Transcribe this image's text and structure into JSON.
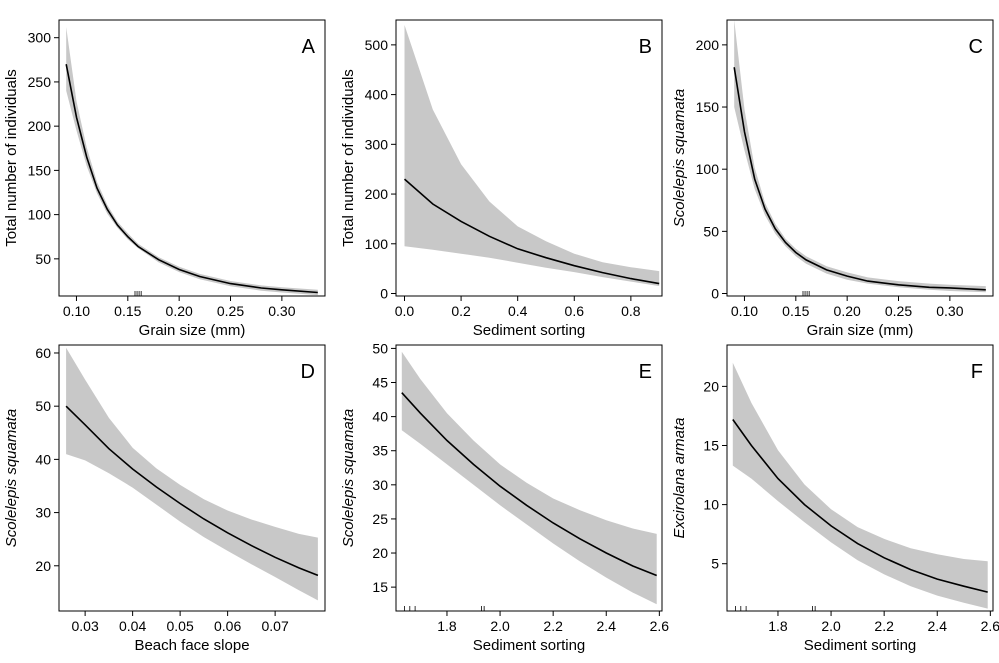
{
  "chart_data": [
    {
      "type": "line",
      "panel": "A",
      "xlabel": "Grain size (mm)",
      "ylabel": "Total number of individuals",
      "ylabel_italic": false,
      "xlim": [
        0.083,
        0.342
      ],
      "ylim": [
        8,
        320
      ],
      "xticks": [
        0.1,
        0.15,
        0.2,
        0.25,
        0.3
      ],
      "xtick_labels": [
        "0.10",
        "0.15",
        "0.20",
        "0.25",
        "0.30"
      ],
      "yticks": [
        50,
        100,
        150,
        200,
        250,
        300
      ],
      "ytick_labels": [
        "50",
        "100",
        "150",
        "200",
        "250",
        "300"
      ],
      "rug": [
        0.157,
        0.159,
        0.161,
        0.163
      ],
      "series": [
        {
          "x": [
            0.09,
            0.1,
            0.11,
            0.12,
            0.13,
            0.14,
            0.15,
            0.16,
            0.18,
            0.2,
            0.22,
            0.25,
            0.28,
            0.3,
            0.335
          ],
          "y": [
            270,
            210,
            165,
            130,
            106,
            88,
            75,
            64,
            49,
            38,
            30,
            22,
            17,
            15,
            12
          ],
          "lower": [
            240,
            195,
            155,
            124,
            101,
            85,
            72,
            62,
            46,
            35,
            27,
            19,
            14,
            12,
            9
          ],
          "upper": [
            312,
            228,
            176,
            137,
            111,
            92,
            79,
            67,
            52,
            41,
            33,
            25,
            20,
            18,
            15
          ]
        }
      ]
    },
    {
      "type": "line",
      "panel": "B",
      "xlabel": "Sediment sorting",
      "ylabel": "Total number of individuals",
      "ylabel_italic": false,
      "xlim": [
        -0.03,
        0.91
      ],
      "ylim": [
        -5,
        550
      ],
      "xticks": [
        0.0,
        0.2,
        0.4,
        0.6,
        0.8
      ],
      "xtick_labels": [
        "0.0",
        "0.2",
        "0.4",
        "0.6",
        "0.8"
      ],
      "yticks": [
        0,
        100,
        200,
        300,
        400,
        500
      ],
      "ytick_labels": [
        "0",
        "100",
        "200",
        "300",
        "400",
        "500"
      ],
      "rug": [],
      "series": [
        {
          "x": [
            0.0,
            0.1,
            0.2,
            0.3,
            0.4,
            0.5,
            0.6,
            0.7,
            0.8,
            0.9
          ],
          "y": [
            230,
            180,
            145,
            115,
            90,
            72,
            56,
            42,
            30,
            20
          ],
          "lower": [
            95,
            88,
            80,
            72,
            62,
            52,
            43,
            33,
            24,
            15
          ],
          "upper": [
            540,
            370,
            260,
            185,
            135,
            105,
            80,
            63,
            53,
            45
          ]
        }
      ]
    },
    {
      "type": "line",
      "panel": "C",
      "xlabel": "Grain size (mm)",
      "ylabel": "Scolelepis squamata",
      "ylabel_italic": true,
      "xlim": [
        0.083,
        0.342
      ],
      "ylim": [
        -2,
        220
      ],
      "xticks": [
        0.1,
        0.15,
        0.2,
        0.25,
        0.3
      ],
      "xtick_labels": [
        "0.10",
        "0.15",
        "0.20",
        "0.25",
        "0.30"
      ],
      "yticks": [
        0,
        50,
        100,
        150,
        200
      ],
      "ytick_labels": [
        "0",
        "50",
        "100",
        "150",
        "200"
      ],
      "rug": [
        0.157,
        0.159,
        0.161,
        0.163
      ],
      "series": [
        {
          "x": [
            0.09,
            0.1,
            0.11,
            0.12,
            0.13,
            0.14,
            0.15,
            0.16,
            0.18,
            0.2,
            0.22,
            0.25,
            0.28,
            0.3,
            0.335
          ],
          "y": [
            182,
            130,
            92,
            68,
            52,
            41,
            33,
            27,
            19,
            14,
            10,
            7,
            5,
            4.5,
            3
          ],
          "lower": [
            150,
            115,
            84,
            63,
            48,
            38,
            30,
            24,
            16,
            11,
            8,
            5,
            3,
            2,
            1
          ],
          "upper": [
            220,
            148,
            101,
            73,
            56,
            44,
            36,
            30,
            22,
            17,
            13,
            10,
            8,
            7,
            6
          ]
        }
      ]
    },
    {
      "type": "line",
      "panel": "D",
      "xlabel": "Beach face slope",
      "ylabel": "Scolelepis squamata",
      "ylabel_italic": true,
      "xlim": [
        0.0245,
        0.0805
      ],
      "ylim": [
        11.5,
        61.5
      ],
      "xticks": [
        0.03,
        0.04,
        0.05,
        0.06,
        0.07
      ],
      "xtick_labels": [
        "0.03",
        "0.04",
        "0.05",
        "0.06",
        "0.07"
      ],
      "yticks": [
        20,
        30,
        40,
        50,
        60
      ],
      "ytick_labels": [
        "20",
        "30",
        "40",
        "50",
        "60"
      ],
      "rug": [],
      "series": [
        {
          "x": [
            0.026,
            0.03,
            0.035,
            0.04,
            0.045,
            0.05,
            0.055,
            0.06,
            0.065,
            0.07,
            0.075,
            0.079
          ],
          "y": [
            50,
            46.5,
            42,
            38.2,
            34.8,
            31.7,
            28.8,
            26.2,
            23.8,
            21.6,
            19.6,
            18.2
          ],
          "lower": [
            41,
            39.8,
            37.4,
            34.7,
            31.5,
            28.3,
            25.4,
            22.8,
            20.3,
            17.9,
            15.4,
            13.5
          ],
          "upper": [
            61,
            55,
            47.8,
            42.2,
            38.3,
            35.2,
            32.5,
            30.4,
            28.7,
            27.3,
            26,
            25.3
          ]
        }
      ]
    },
    {
      "type": "line",
      "panel": "E",
      "xlabel": "Sediment sorting",
      "ylabel": "Scolelepis squamata",
      "ylabel_italic": true,
      "xlim": [
        1.608,
        2.61
      ],
      "ylim": [
        11.5,
        50.5
      ],
      "xticks": [
        1.8,
        2.0,
        2.2,
        2.4,
        2.6
      ],
      "xtick_labels": [
        "1.8",
        "2.0",
        "2.2",
        "2.4",
        "2.6"
      ],
      "yticks": [
        15,
        20,
        25,
        30,
        35,
        40,
        45,
        50
      ],
      "ytick_labels": [
        "15",
        "20",
        "25",
        "30",
        "35",
        "40",
        "45",
        "50"
      ],
      "rug": [
        1.64,
        1.66,
        1.68,
        1.93,
        1.94
      ],
      "series": [
        {
          "x": [
            1.63,
            1.7,
            1.8,
            1.9,
            2.0,
            2.1,
            2.2,
            2.3,
            2.4,
            2.5,
            2.59
          ],
          "y": [
            43.5,
            40.5,
            36.5,
            33,
            29.8,
            27,
            24.4,
            22.1,
            20,
            18.1,
            16.7
          ],
          "lower": [
            38,
            36,
            33,
            30,
            27,
            24.2,
            21.4,
            18.8,
            16.4,
            14.2,
            12.5
          ],
          "upper": [
            49.5,
            45.5,
            40.5,
            36.5,
            33,
            30.3,
            28,
            26.3,
            24.8,
            23.6,
            22.8
          ]
        }
      ]
    },
    {
      "type": "line",
      "panel": "F",
      "xlabel": "Sediment sorting",
      "ylabel": "Excirolana armata",
      "ylabel_italic": true,
      "xlim": [
        1.608,
        2.61
      ],
      "ylim": [
        1.0,
        23.5
      ],
      "xticks": [
        1.8,
        2.0,
        2.2,
        2.4,
        2.6
      ],
      "xtick_labels": [
        "1.8",
        "2.0",
        "2.2",
        "2.4",
        "2.6"
      ],
      "yticks": [
        5,
        10,
        15,
        20
      ],
      "ytick_labels": [
        "5",
        "10",
        "15",
        "20"
      ],
      "rug": [
        1.64,
        1.66,
        1.68,
        1.93,
        1.94
      ],
      "series": [
        {
          "x": [
            1.63,
            1.7,
            1.8,
            1.9,
            2.0,
            2.1,
            2.2,
            2.3,
            2.4,
            2.5,
            2.59
          ],
          "y": [
            17.2,
            15,
            12.2,
            10,
            8.2,
            6.7,
            5.5,
            4.5,
            3.7,
            3.1,
            2.6
          ],
          "lower": [
            13.3,
            12.2,
            10.3,
            8.5,
            6.8,
            5.3,
            4.1,
            3.1,
            2.3,
            1.7,
            1.2
          ],
          "upper": [
            22,
            18.6,
            14.6,
            11.7,
            9.6,
            8.1,
            7.1,
            6.3,
            5.8,
            5.4,
            5.2
          ]
        }
      ]
    }
  ]
}
